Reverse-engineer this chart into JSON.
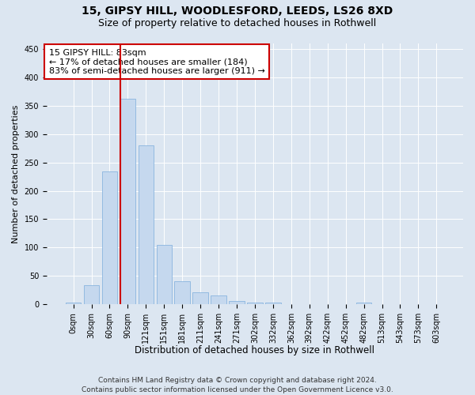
{
  "title1": "15, GIPSY HILL, WOODLESFORD, LEEDS, LS26 8XD",
  "title2": "Size of property relative to detached houses in Rothwell",
  "xlabel": "Distribution of detached houses by size in Rothwell",
  "ylabel": "Number of detached properties",
  "bar_labels": [
    "0sqm",
    "30sqm",
    "60sqm",
    "90sqm",
    "121sqm",
    "151sqm",
    "181sqm",
    "211sqm",
    "241sqm",
    "271sqm",
    "302sqm",
    "332sqm",
    "362sqm",
    "392sqm",
    "422sqm",
    "452sqm",
    "482sqm",
    "513sqm",
    "543sqm",
    "573sqm",
    "603sqm"
  ],
  "bar_values": [
    3,
    33,
    234,
    362,
    280,
    105,
    41,
    21,
    16,
    6,
    3,
    3,
    0,
    0,
    0,
    0,
    3,
    0,
    0,
    0,
    0
  ],
  "bar_color": "#c5d8ee",
  "bar_edgecolor": "#7aacdc",
  "vline_color": "#cc0000",
  "annotation_text": "15 GIPSY HILL: 83sqm\n← 17% of detached houses are smaller (184)\n83% of semi-detached houses are larger (911) →",
  "annotation_box_color": "#ffffff",
  "annotation_box_edgecolor": "#cc0000",
  "ylim": [
    0,
    460
  ],
  "background_color": "#dce6f1",
  "plot_bg_color": "#dce6f1",
  "footer": "Contains HM Land Registry data © Crown copyright and database right 2024.\nContains public sector information licensed under the Open Government Licence v3.0.",
  "title1_fontsize": 10,
  "title2_fontsize": 9,
  "xlabel_fontsize": 8.5,
  "ylabel_fontsize": 8,
  "tick_fontsize": 7,
  "footer_fontsize": 6.5,
  "annot_fontsize": 8
}
